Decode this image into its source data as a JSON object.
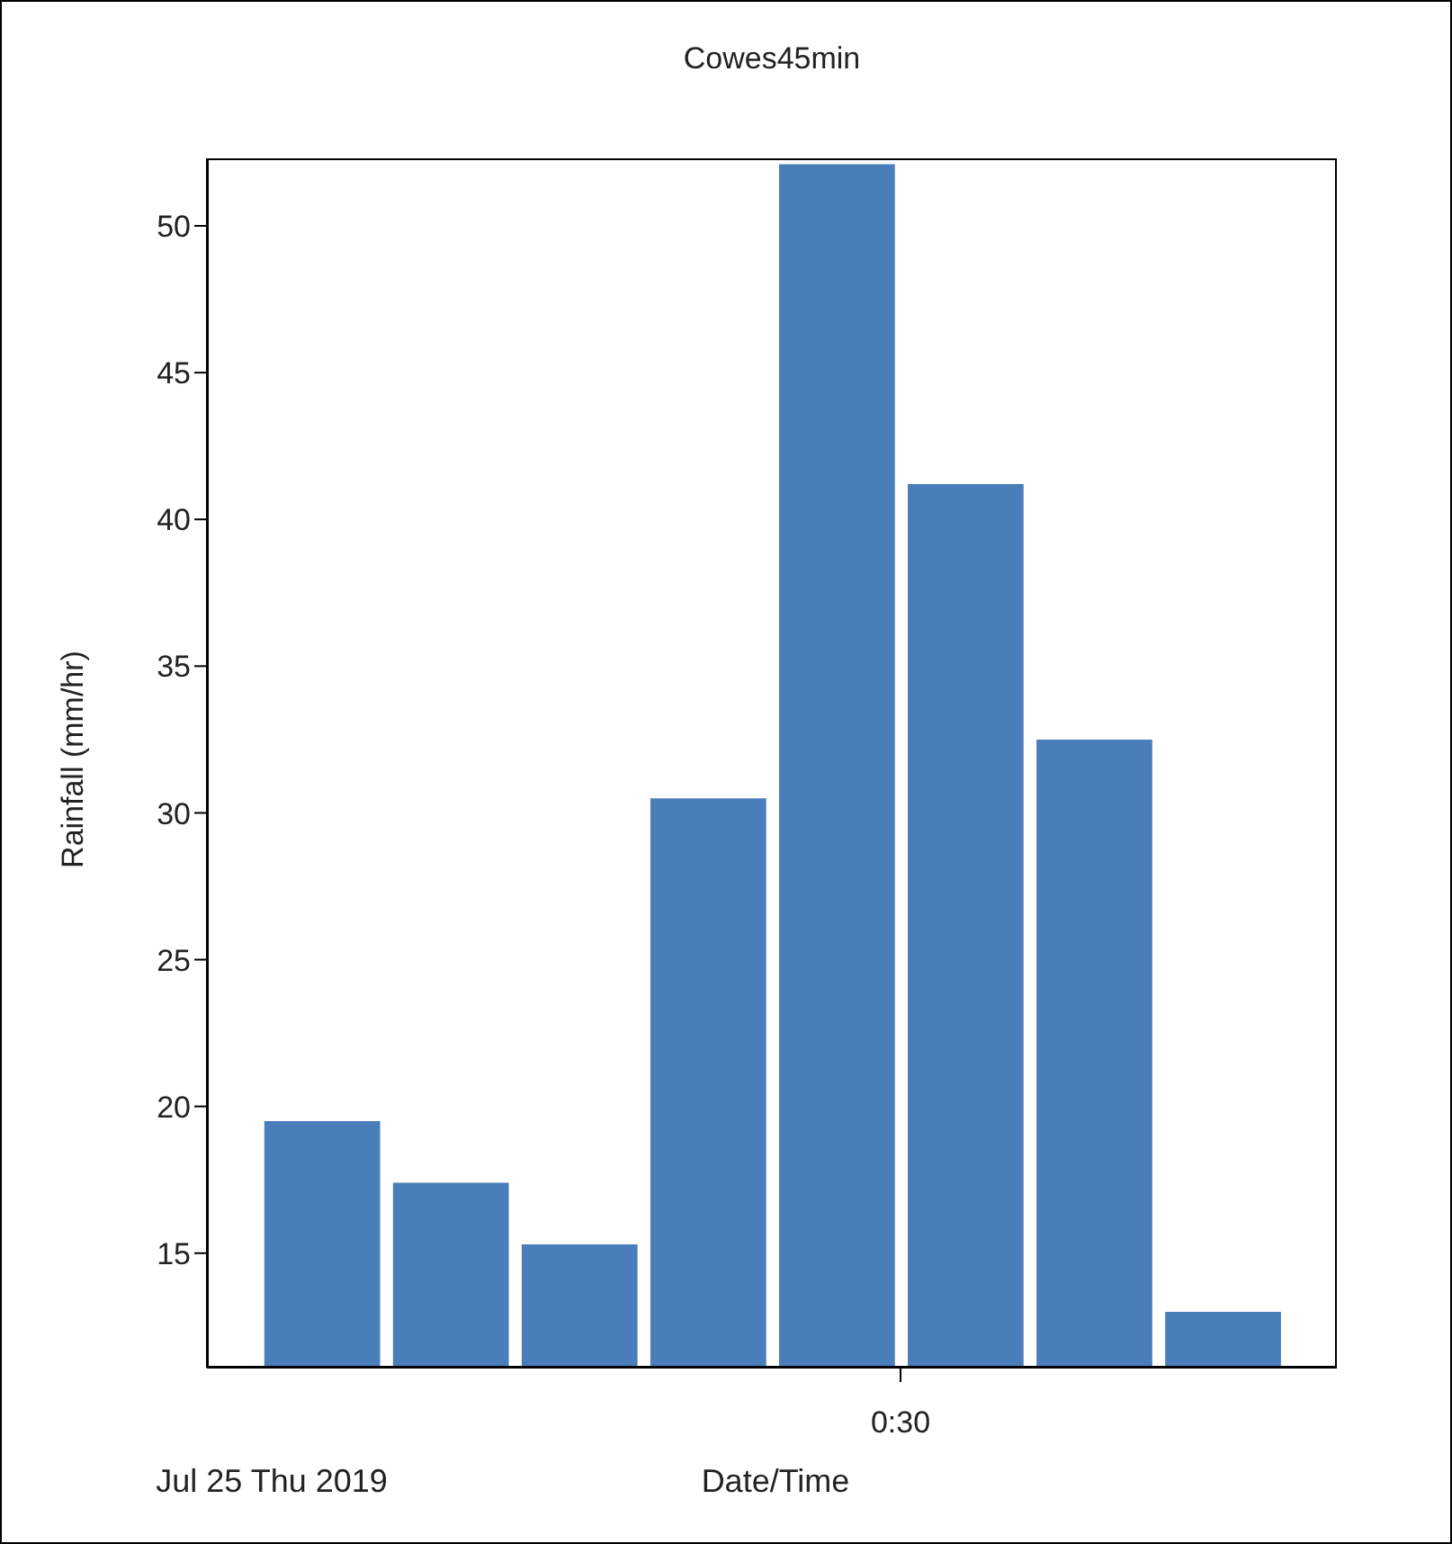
{
  "chart_data": {
    "type": "bar",
    "title": "Cowes45min",
    "xlabel": "Date/Time",
    "ylabel": "Rainfall (mm/hr)",
    "annotations": [
      "Jul 25 Thu 2019",
      "0:30"
    ],
    "categories": [
      null,
      null,
      null,
      null,
      null,
      null,
      null,
      null
    ],
    "values": [
      19.5,
      17.4,
      15.3,
      30.5,
      52.1,
      41.2,
      32.5,
      13.0
    ],
    "color": "#4a7eba",
    "ylim": [
      11.1,
      52.3
    ],
    "yticks": [
      15,
      20,
      25,
      30,
      35,
      40,
      45,
      50
    ],
    "grid": false
  }
}
